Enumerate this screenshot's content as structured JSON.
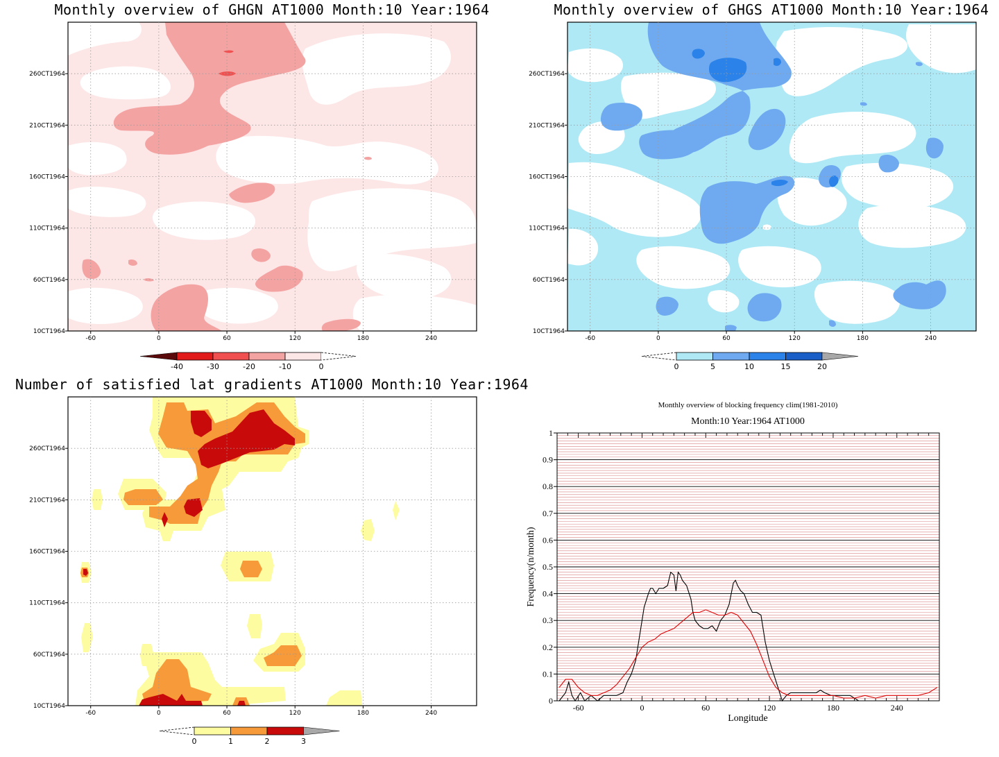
{
  "panels": {
    "ghgn": {
      "title": "Monthly overview of GHGN AT1000 Month:10 Year:1964",
      "colorbar_labels": [
        "-40",
        "-30",
        "-20",
        "-10",
        "0"
      ],
      "colorbar_colors": [
        "#5a0a0a",
        "#e11a1a",
        "#f05050",
        "#f4a3a3",
        "#fde6e6"
      ]
    },
    "ghgs": {
      "title": "Monthly overview of GHGS AT1000 Month:10 Year:1964",
      "colorbar_labels": [
        "0",
        "5",
        "10",
        "15",
        "20"
      ],
      "colorbar_colors": [
        "#aee9f5",
        "#6faaf0",
        "#2b82e8",
        "#1a5fc8",
        "#a8a8a8"
      ]
    },
    "lat": {
      "title": "Number of satisfied lat gradients AT1000 Month:10 Year:1964",
      "colorbar_labels": [
        "0",
        "1",
        "2",
        "3"
      ],
      "colorbar_colors": [
        "#fefca0",
        "#f69a3a",
        "#c80a0a",
        "#a8a8a8"
      ]
    },
    "freq": {
      "title_line1": "Monthly overview of blocking frequency clim(1981-2010)",
      "title_line2": "Month:10 Year:1964  AT1000",
      "xlabel": "Longitude",
      "ylabel": "Frequency(n/month)"
    }
  },
  "y_tick_labels": [
    "10CT1964",
    "60CT1964",
    "110CT1964",
    "160CT1964",
    "210CT1964",
    "260CT1964"
  ],
  "x_tick_labels": [
    "-60",
    "0",
    "60",
    "120",
    "180",
    "240"
  ],
  "freq_y_ticks": [
    "0",
    "0.1",
    "0.2",
    "0.3",
    "0.4",
    "0.5",
    "0.6",
    "0.7",
    "0.8",
    "0.9",
    "1"
  ],
  "chart_data": [
    {
      "type": "heatmap",
      "title": "Monthly overview of GHGN AT1000 Month:10 Year:1964",
      "x_ticks": [
        -60,
        0,
        60,
        120,
        180,
        240
      ],
      "y_ticks": [
        "10CT1964",
        "60CT1964",
        "110CT1964",
        "160CT1964",
        "210CT1964",
        "260CT1964"
      ],
      "levels": [
        -40,
        -30,
        -20,
        -10,
        0
      ],
      "xlim": [
        -80,
        280
      ]
    },
    {
      "type": "heatmap",
      "title": "Monthly overview of GHGS AT1000 Month:10 Year:1964",
      "x_ticks": [
        -60,
        0,
        60,
        120,
        180,
        240
      ],
      "y_ticks": [
        "10CT1964",
        "60CT1964",
        "110CT1964",
        "160CT1964",
        "210CT1964",
        "260CT1964"
      ],
      "levels": [
        0,
        5,
        10,
        15,
        20
      ],
      "xlim": [
        -80,
        280
      ]
    },
    {
      "type": "heatmap",
      "title": "Number of satisfied lat gradients AT1000 Month:10 Year:1964",
      "x_ticks": [
        -60,
        0,
        60,
        120,
        180,
        240
      ],
      "y_ticks": [
        "10CT1964",
        "60CT1964",
        "110CT1964",
        "160CT1964",
        "210CT1964",
        "260CT1964"
      ],
      "levels": [
        0,
        1,
        2,
        3
      ],
      "xlim": [
        -80,
        280
      ]
    },
    {
      "type": "line",
      "title": "Monthly overview of blocking frequency clim(1981-2010)",
      "subtitle": "Month:10 Year:1964  AT1000",
      "xlabel": "Longitude",
      "ylabel": "Frequency(n/month)",
      "xlim": [
        -80,
        280
      ],
      "ylim": [
        0,
        1
      ],
      "x_ticks": [
        -60,
        0,
        60,
        120,
        180,
        240
      ],
      "series": [
        {
          "color": "#000000",
          "x": [
            -78,
            -72,
            -69,
            -66,
            -63,
            -58,
            -54,
            -48,
            -42,
            -36,
            -30,
            -24,
            -18,
            -14,
            -10,
            -6,
            -2,
            2,
            6,
            8,
            10,
            13,
            16,
            20,
            24,
            27,
            30,
            32,
            34,
            36,
            38,
            42,
            46,
            48,
            50,
            54,
            58,
            62,
            66,
            70,
            74,
            78,
            82,
            84,
            86,
            88,
            90,
            93,
            96,
            100,
            104,
            108,
            112,
            116,
            120,
            124,
            128,
            132,
            136,
            140,
            146,
            152,
            158,
            164,
            168,
            172,
            178,
            184,
            190,
            196,
            204,
            212,
            224,
            236,
            250,
            264,
            278
          ],
          "y": [
            0,
            0.03,
            0.07,
            0.02,
            0,
            0.03,
            0,
            0.02,
            0,
            0.02,
            0.02,
            0.02,
            0.03,
            0.07,
            0.1,
            0.15,
            0.25,
            0.35,
            0.4,
            0.42,
            0.42,
            0.4,
            0.42,
            0.42,
            0.43,
            0.48,
            0.47,
            0.41,
            0.48,
            0.47,
            0.45,
            0.43,
            0.38,
            0.33,
            0.3,
            0.28,
            0.27,
            0.27,
            0.28,
            0.26,
            0.3,
            0.32,
            0.36,
            0.4,
            0.44,
            0.45,
            0.43,
            0.41,
            0.4,
            0.36,
            0.33,
            0.33,
            0.32,
            0.22,
            0.15,
            0.1,
            0.05,
            0.0,
            0.02,
            0.03,
            0.03,
            0.03,
            0.03,
            0.03,
            0.04,
            0.03,
            0.02,
            0.02,
            0.02,
            0.02,
            0.0,
            0.0,
            0.0,
            0.0,
            0.0,
            0.0,
            0.0
          ]
        },
        {
          "color": "#e00000",
          "x": [
            -78,
            -72,
            -66,
            -60,
            -54,
            -48,
            -42,
            -36,
            -30,
            -24,
            -18,
            -12,
            -6,
            0,
            6,
            12,
            18,
            24,
            30,
            36,
            42,
            48,
            54,
            60,
            66,
            72,
            78,
            84,
            90,
            96,
            102,
            108,
            114,
            120,
            126,
            132,
            138,
            144,
            150,
            160,
            170,
            180,
            190,
            200,
            210,
            220,
            230,
            240,
            250,
            260,
            270,
            278
          ],
          "y": [
            0.05,
            0.08,
            0.08,
            0.05,
            0.03,
            0.02,
            0.02,
            0.03,
            0.04,
            0.06,
            0.09,
            0.12,
            0.16,
            0.2,
            0.22,
            0.23,
            0.25,
            0.26,
            0.27,
            0.29,
            0.31,
            0.33,
            0.33,
            0.34,
            0.33,
            0.32,
            0.32,
            0.33,
            0.32,
            0.29,
            0.26,
            0.21,
            0.15,
            0.09,
            0.05,
            0.03,
            0.02,
            0.02,
            0.02,
            0.02,
            0.02,
            0.02,
            0.01,
            0.01,
            0.02,
            0.01,
            0.02,
            0.02,
            0.02,
            0.02,
            0.03,
            0.05
          ]
        }
      ]
    }
  ]
}
